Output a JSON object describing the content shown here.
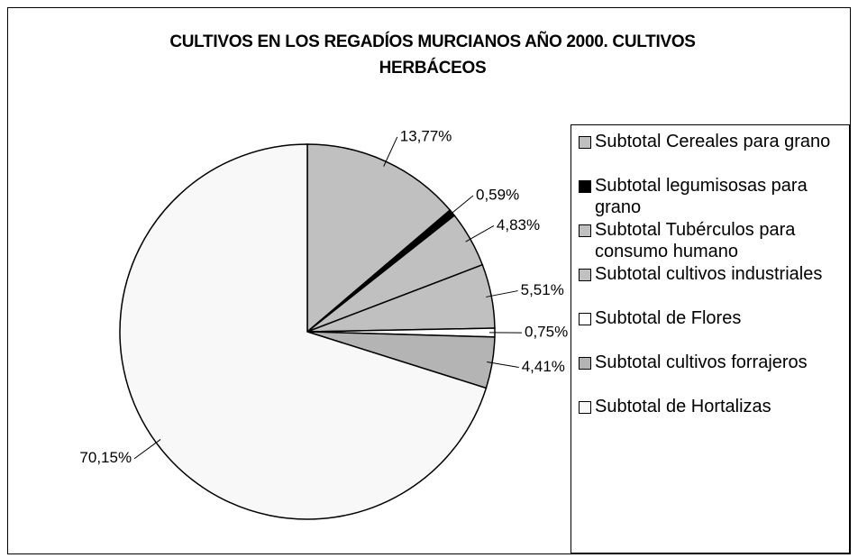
{
  "chart_data": {
    "type": "pie",
    "title": "CULTIVOS EN LOS REGADÍOS MURCIANOS AÑO 2000. CULTIVOS HERBÁCEOS",
    "categories": [
      "Subtotal Cereales para grano",
      "Subtotal legumisosas para grano",
      "Subtotal Tubérculos para consumo humano",
      "Subtotal cultivos industriales",
      "Subtotal de Flores",
      "Subtotal cultivos forrajeros",
      "Subtotal de Hortalizas"
    ],
    "values": [
      13.77,
      0.59,
      4.83,
      5.51,
      0.75,
      4.41,
      70.15
    ],
    "value_labels": [
      "13,77%",
      "0,59%",
      "4,83%",
      "5,51%",
      "0,75%",
      "4,41%",
      "70,15%"
    ],
    "colors": [
      "#c0c0c0",
      "#000000",
      "#c0c0c0",
      "#c0c0c0",
      "#ffffff",
      "#b4b4b4",
      "#f8f8f8"
    ],
    "legend": "right"
  }
}
